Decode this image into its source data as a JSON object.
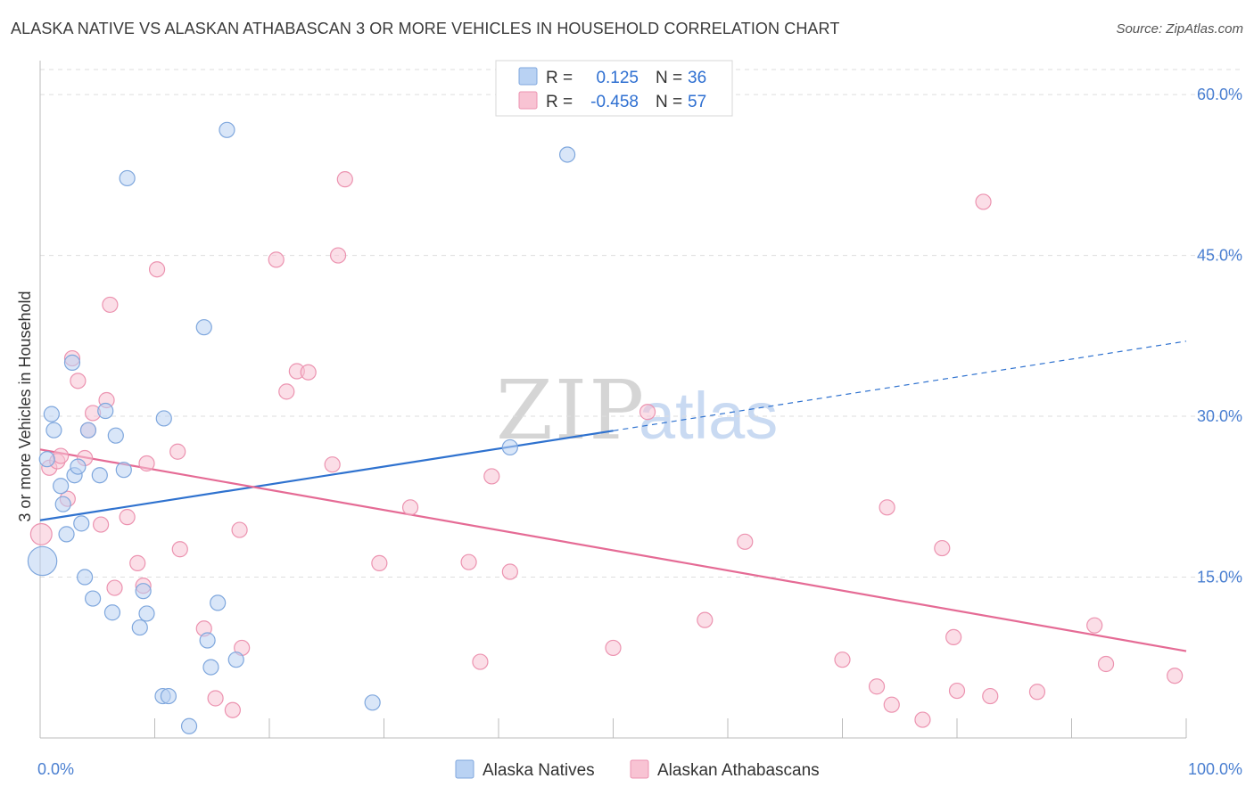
{
  "title": "ALASKA NATIVE VS ALASKAN ATHABASCAN 3 OR MORE VEHICLES IN HOUSEHOLD CORRELATION CHART",
  "source": "Source: ZipAtlas.com",
  "watermark": {
    "zip": "ZIP",
    "atlas": "atlas"
  },
  "colors": {
    "blue_fill": "#b9d2f3",
    "blue_stroke": "#7fa7dd",
    "blue_line": "#2f72cf",
    "pink_fill": "#f8c3d3",
    "pink_stroke": "#ec93b0",
    "pink_line": "#e56b95",
    "tick": "#4a7fd1",
    "grid": "#dedede"
  },
  "legend": {
    "rows": [
      {
        "r_label": "R =",
        "r_value": "0.125",
        "n_label": "N =",
        "n_value": "36"
      },
      {
        "r_label": "R =",
        "r_value": "-0.458",
        "n_label": "N =",
        "n_value": "57"
      }
    ]
  },
  "chart_data": {
    "type": "scatter",
    "xlabel": "",
    "ylabel": "3 or more Vehicles in Household",
    "xlim": [
      0,
      100
    ],
    "ylim": [
      0,
      63
    ],
    "y_ticks": [
      15,
      30,
      45,
      60
    ],
    "y_tick_labels": [
      "15.0%",
      "30.0%",
      "45.0%",
      "60.0%"
    ],
    "x_tick_labels": [
      "0.0%",
      "100.0%"
    ],
    "series": [
      {
        "name": "Alaska Natives",
        "color": "blue",
        "R": 0.125,
        "N": 36,
        "trend": {
          "x0": 0,
          "y0": 20.3,
          "x_solid_end": 50,
          "x1": 100,
          "y1": 37.0
        },
        "points": [
          {
            "x": 0.2,
            "y": 16.5,
            "s": 1.9
          },
          {
            "x": 0.6,
            "y": 26.0,
            "s": 1.0
          },
          {
            "x": 1.0,
            "y": 30.2,
            "s": 1.0
          },
          {
            "x": 1.2,
            "y": 28.7,
            "s": 1.0
          },
          {
            "x": 1.8,
            "y": 23.5,
            "s": 1.0
          },
          {
            "x": 2.0,
            "y": 21.8,
            "s": 1.0
          },
          {
            "x": 2.3,
            "y": 19.0,
            "s": 1.0
          },
          {
            "x": 2.8,
            "y": 35.0,
            "s": 1.0
          },
          {
            "x": 3.0,
            "y": 24.5,
            "s": 1.0
          },
          {
            "x": 3.3,
            "y": 25.3,
            "s": 1.0
          },
          {
            "x": 3.6,
            "y": 20.0,
            "s": 1.0
          },
          {
            "x": 3.9,
            "y": 15.0,
            "s": 1.0
          },
          {
            "x": 4.2,
            "y": 28.7,
            "s": 1.0
          },
          {
            "x": 4.6,
            "y": 13.0,
            "s": 1.0
          },
          {
            "x": 5.2,
            "y": 24.5,
            "s": 1.0
          },
          {
            "x": 5.7,
            "y": 30.5,
            "s": 1.0
          },
          {
            "x": 6.3,
            "y": 11.7,
            "s": 1.0
          },
          {
            "x": 6.6,
            "y": 28.2,
            "s": 1.0
          },
          {
            "x": 7.3,
            "y": 25.0,
            "s": 1.0
          },
          {
            "x": 7.6,
            "y": 52.2,
            "s": 1.0
          },
          {
            "x": 8.7,
            "y": 10.3,
            "s": 1.0
          },
          {
            "x": 9.0,
            "y": 13.7,
            "s": 1.0
          },
          {
            "x": 9.3,
            "y": 11.6,
            "s": 1.0
          },
          {
            "x": 10.7,
            "y": 3.9,
            "s": 1.0
          },
          {
            "x": 10.8,
            "y": 29.8,
            "s": 1.0
          },
          {
            "x": 11.2,
            "y": 3.9,
            "s": 1.0
          },
          {
            "x": 13.0,
            "y": 1.1,
            "s": 1.0
          },
          {
            "x": 14.3,
            "y": 38.3,
            "s": 1.0
          },
          {
            "x": 14.6,
            "y": 9.1,
            "s": 1.0
          },
          {
            "x": 14.9,
            "y": 6.6,
            "s": 1.0
          },
          {
            "x": 15.5,
            "y": 12.6,
            "s": 1.0
          },
          {
            "x": 16.3,
            "y": 56.7,
            "s": 1.0
          },
          {
            "x": 17.1,
            "y": 7.3,
            "s": 1.0
          },
          {
            "x": 29.0,
            "y": 3.3,
            "s": 1.0
          },
          {
            "x": 41.0,
            "y": 27.1,
            "s": 1.0
          },
          {
            "x": 46.0,
            "y": 54.4,
            "s": 1.0
          }
        ]
      },
      {
        "name": "Alaskan Athabascans",
        "color": "pink",
        "R": -0.458,
        "N": 57,
        "trend": {
          "x0": 0,
          "y0": 26.9,
          "x1": 100,
          "y1": 8.1
        },
        "points": [
          {
            "x": 0.1,
            "y": 19.0,
            "s": 1.4
          },
          {
            "x": 0.8,
            "y": 25.2,
            "s": 1.0
          },
          {
            "x": 1.5,
            "y": 25.8,
            "s": 1.0
          },
          {
            "x": 1.8,
            "y": 26.3,
            "s": 1.0
          },
          {
            "x": 2.4,
            "y": 22.3,
            "s": 1.0
          },
          {
            "x": 2.8,
            "y": 35.4,
            "s": 1.0
          },
          {
            "x": 3.3,
            "y": 33.3,
            "s": 1.0
          },
          {
            "x": 3.9,
            "y": 26.1,
            "s": 1.0
          },
          {
            "x": 4.2,
            "y": 28.7,
            "s": 1.0
          },
          {
            "x": 4.6,
            "y": 30.3,
            "s": 1.0
          },
          {
            "x": 5.3,
            "y": 19.9,
            "s": 1.0
          },
          {
            "x": 5.8,
            "y": 31.5,
            "s": 1.0
          },
          {
            "x": 6.1,
            "y": 40.4,
            "s": 1.0
          },
          {
            "x": 6.5,
            "y": 14.0,
            "s": 1.0
          },
          {
            "x": 7.6,
            "y": 20.6,
            "s": 1.0
          },
          {
            "x": 8.5,
            "y": 16.3,
            "s": 1.0
          },
          {
            "x": 9.0,
            "y": 14.2,
            "s": 1.0
          },
          {
            "x": 9.3,
            "y": 25.6,
            "s": 1.0
          },
          {
            "x": 10.2,
            "y": 43.7,
            "s": 1.0
          },
          {
            "x": 12.0,
            "y": 26.7,
            "s": 1.0
          },
          {
            "x": 12.2,
            "y": 17.6,
            "s": 1.0
          },
          {
            "x": 14.3,
            "y": 10.2,
            "s": 1.0
          },
          {
            "x": 15.3,
            "y": 3.7,
            "s": 1.0
          },
          {
            "x": 16.8,
            "y": 2.6,
            "s": 1.0
          },
          {
            "x": 17.4,
            "y": 19.4,
            "s": 1.0
          },
          {
            "x": 17.6,
            "y": 8.4,
            "s": 1.0
          },
          {
            "x": 20.6,
            "y": 44.6,
            "s": 1.0
          },
          {
            "x": 21.5,
            "y": 32.3,
            "s": 1.0
          },
          {
            "x": 22.4,
            "y": 34.2,
            "s": 1.0
          },
          {
            "x": 23.4,
            "y": 34.1,
            "s": 1.0
          },
          {
            "x": 25.5,
            "y": 25.5,
            "s": 1.0
          },
          {
            "x": 26.0,
            "y": 45.0,
            "s": 1.0
          },
          {
            "x": 26.6,
            "y": 52.1,
            "s": 1.0
          },
          {
            "x": 29.6,
            "y": 16.3,
            "s": 1.0
          },
          {
            "x": 32.3,
            "y": 21.5,
            "s": 1.0
          },
          {
            "x": 37.4,
            "y": 16.4,
            "s": 1.0
          },
          {
            "x": 38.4,
            "y": 7.1,
            "s": 1.0
          },
          {
            "x": 39.4,
            "y": 24.4,
            "s": 1.0
          },
          {
            "x": 41.0,
            "y": 15.5,
            "s": 1.0
          },
          {
            "x": 50.0,
            "y": 8.4,
            "s": 1.0
          },
          {
            "x": 53.0,
            "y": 30.4,
            "s": 1.0
          },
          {
            "x": 58.0,
            "y": 11.0,
            "s": 1.0
          },
          {
            "x": 61.5,
            "y": 18.3,
            "s": 1.0
          },
          {
            "x": 70.0,
            "y": 7.3,
            "s": 1.0
          },
          {
            "x": 73.0,
            "y": 4.8,
            "s": 1.0
          },
          {
            "x": 73.9,
            "y": 21.5,
            "s": 1.0
          },
          {
            "x": 74.3,
            "y": 3.1,
            "s": 1.0
          },
          {
            "x": 77.0,
            "y": 1.7,
            "s": 1.0
          },
          {
            "x": 78.7,
            "y": 17.7,
            "s": 1.0
          },
          {
            "x": 79.7,
            "y": 9.4,
            "s": 1.0
          },
          {
            "x": 80.0,
            "y": 4.4,
            "s": 1.0
          },
          {
            "x": 82.9,
            "y": 3.9,
            "s": 1.0
          },
          {
            "x": 82.3,
            "y": 50.0,
            "s": 1.0
          },
          {
            "x": 87.0,
            "y": 4.3,
            "s": 1.0
          },
          {
            "x": 92.0,
            "y": 10.5,
            "s": 1.0
          },
          {
            "x": 93.0,
            "y": 6.9,
            "s": 1.0
          },
          {
            "x": 99.0,
            "y": 5.8,
            "s": 1.0
          }
        ]
      }
    ]
  }
}
